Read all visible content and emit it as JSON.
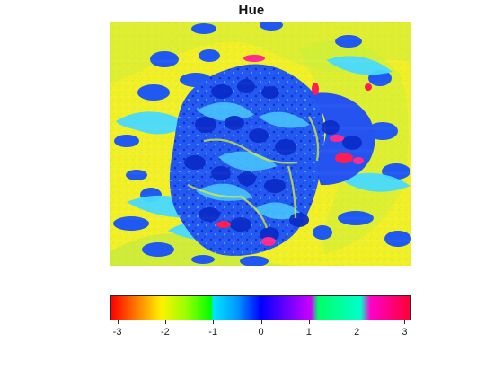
{
  "chart_data": {
    "type": "heatmap",
    "title": "Hue",
    "colorbar": {
      "orientation": "horizontal",
      "range": [
        -3.1416,
        3.1416
      ],
      "ticks": [
        -3,
        -2,
        -1,
        0,
        1,
        2,
        3
      ],
      "tick_labels": [
        "-3",
        "-2",
        "-1",
        "0",
        "1",
        "2",
        "3"
      ],
      "colormap": [
        {
          "value": -3.1416,
          "color": "#ff0000"
        },
        {
          "value": -2.618,
          "color": "#ff7a00"
        },
        {
          "value": -2.0944,
          "color": "#fff200"
        },
        {
          "value": -1.5708,
          "color": "#99ff00"
        },
        {
          "value": -1.0472,
          "color": "#00ff00"
        },
        {
          "value": -1.0,
          "color": "#00e5ff"
        },
        {
          "value": -0.5,
          "color": "#0099ff"
        },
        {
          "value": 0.0,
          "color": "#0000ff"
        },
        {
          "value": 0.5236,
          "color": "#6600ff"
        },
        {
          "value": 1.0472,
          "color": "#cc00ff"
        },
        {
          "value": 1.2,
          "color": "#00ff66"
        },
        {
          "value": 2.0944,
          "color": "#00ffcc"
        },
        {
          "value": 2.3,
          "color": "#ff00cc"
        },
        {
          "value": 3.1416,
          "color": "#ff0033"
        }
      ]
    },
    "image_description_colors": {
      "background": "#f2ef25",
      "green_texture": "#9be84c",
      "cyan_texture": "#55e6ff",
      "blue_core": "#1f4df0",
      "dark_blue_cells": "#0b2fd0",
      "magenta_spots": "#ff2a8c",
      "red_spots": "#ff1b3a"
    }
  }
}
